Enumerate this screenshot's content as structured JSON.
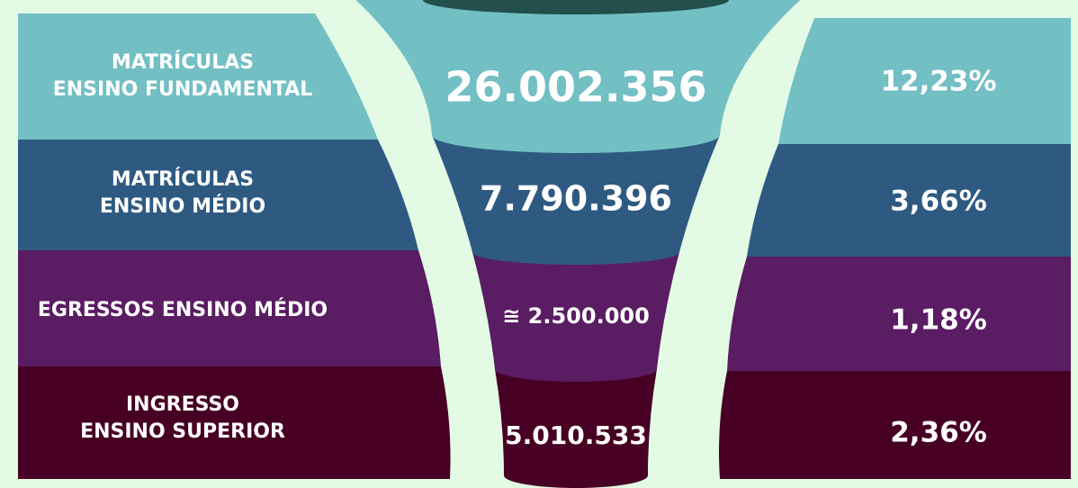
{
  "rows": [
    {
      "label": [
        "MATRÍCULAS",
        "ENSINO FUNDAMENTAL"
      ],
      "value": "26.002.356",
      "percent": "12,23%"
    },
    {
      "label": [
        "MATRÍCULAS",
        "ENSINO MÉDIO"
      ],
      "value": "7.790.396",
      "percent": "3,66%"
    },
    {
      "label": [
        "EGRESSOS ENSINO MÉDIO"
      ],
      "value": "≅ 2.500.000",
      "percent": "1,18%"
    },
    {
      "label": [
        "INGRESSO",
        "ENSINO SUPERIOR"
      ],
      "value": "5.010.533",
      "percent": "2,36%"
    }
  ]
}
